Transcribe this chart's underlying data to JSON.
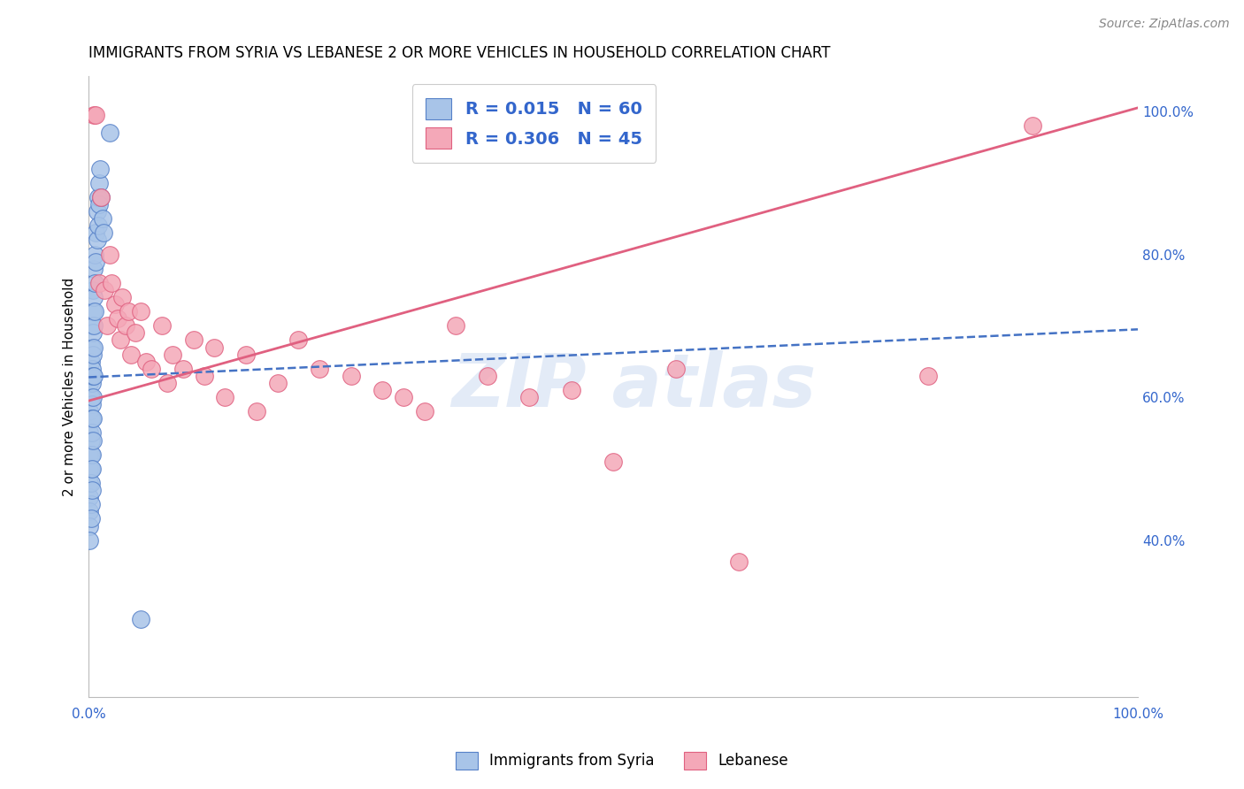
{
  "title": "IMMIGRANTS FROM SYRIA VS LEBANESE 2 OR MORE VEHICLES IN HOUSEHOLD CORRELATION CHART",
  "source": "Source: ZipAtlas.com",
  "ylabel": "2 or more Vehicles in Household",
  "xlim": [
    0.0,
    1.0
  ],
  "ylim": [
    0.18,
    1.05
  ],
  "legend_R1": "R = 0.015",
  "legend_N1": "N = 60",
  "legend_R2": "R = 0.306",
  "legend_N2": "N = 45",
  "blue_color": "#a8c4e8",
  "pink_color": "#f4a8b8",
  "blue_edge_color": "#5580c8",
  "pink_edge_color": "#e06080",
  "blue_line_color": "#4472c4",
  "pink_line_color": "#e06080",
  "syria_x": [
    0.001,
    0.001,
    0.001,
    0.001,
    0.001,
    0.001,
    0.001,
    0.001,
    0.001,
    0.001,
    0.002,
    0.002,
    0.002,
    0.002,
    0.002,
    0.002,
    0.002,
    0.002,
    0.002,
    0.002,
    0.003,
    0.003,
    0.003,
    0.003,
    0.003,
    0.003,
    0.003,
    0.003,
    0.003,
    0.003,
    0.004,
    0.004,
    0.004,
    0.004,
    0.004,
    0.004,
    0.004,
    0.004,
    0.005,
    0.005,
    0.005,
    0.005,
    0.005,
    0.006,
    0.006,
    0.006,
    0.007,
    0.007,
    0.008,
    0.008,
    0.009,
    0.009,
    0.01,
    0.01,
    0.011,
    0.012,
    0.013,
    0.014,
    0.02,
    0.05
  ],
  "syria_y": [
    0.62,
    0.58,
    0.55,
    0.52,
    0.5,
    0.48,
    0.46,
    0.44,
    0.42,
    0.4,
    0.65,
    0.63,
    0.6,
    0.57,
    0.54,
    0.52,
    0.5,
    0.48,
    0.45,
    0.43,
    0.7,
    0.67,
    0.64,
    0.62,
    0.59,
    0.57,
    0.55,
    0.52,
    0.5,
    0.47,
    0.75,
    0.72,
    0.69,
    0.66,
    0.63,
    0.6,
    0.57,
    0.54,
    0.78,
    0.74,
    0.7,
    0.67,
    0.63,
    0.8,
    0.76,
    0.72,
    0.83,
    0.79,
    0.86,
    0.82,
    0.88,
    0.84,
    0.9,
    0.87,
    0.92,
    0.88,
    0.85,
    0.83,
    0.97,
    0.29
  ],
  "lebanese_x": [
    0.005,
    0.007,
    0.01,
    0.012,
    0.015,
    0.018,
    0.02,
    0.022,
    0.025,
    0.028,
    0.03,
    0.032,
    0.035,
    0.038,
    0.04,
    0.045,
    0.05,
    0.055,
    0.06,
    0.07,
    0.075,
    0.08,
    0.09,
    0.1,
    0.11,
    0.12,
    0.13,
    0.15,
    0.16,
    0.18,
    0.2,
    0.22,
    0.25,
    0.28,
    0.3,
    0.32,
    0.35,
    0.38,
    0.42,
    0.46,
    0.5,
    0.56,
    0.62,
    0.8,
    0.9
  ],
  "lebanese_y": [
    0.995,
    0.995,
    0.76,
    0.88,
    0.75,
    0.7,
    0.8,
    0.76,
    0.73,
    0.71,
    0.68,
    0.74,
    0.7,
    0.72,
    0.66,
    0.69,
    0.72,
    0.65,
    0.64,
    0.7,
    0.62,
    0.66,
    0.64,
    0.68,
    0.63,
    0.67,
    0.6,
    0.66,
    0.58,
    0.62,
    0.68,
    0.64,
    0.63,
    0.61,
    0.6,
    0.58,
    0.7,
    0.63,
    0.6,
    0.61,
    0.51,
    0.64,
    0.37,
    0.63,
    0.98
  ],
  "blue_trendline": [
    0.0,
    1.0,
    0.628,
    0.695
  ],
  "pink_trendline": [
    0.0,
    1.0,
    0.595,
    1.005
  ]
}
